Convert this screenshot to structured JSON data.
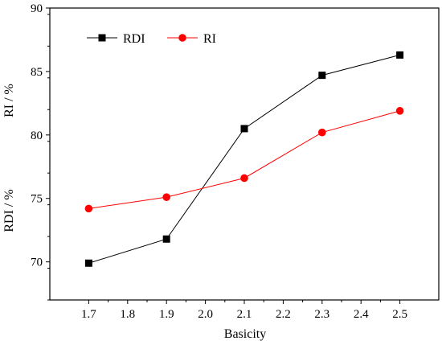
{
  "chart_data": {
    "type": "line",
    "title": "",
    "xlabel": "Basicity",
    "ylabel_upper": "RI / %",
    "ylabel_lower": "RDI / %",
    "x": [
      1.7,
      1.9,
      2.1,
      2.3,
      2.5
    ],
    "xlim": [
      1.6,
      2.6
    ],
    "xticks": [
      "1.7",
      "1.8",
      "1.9",
      "2.0",
      "2.1",
      "2.2",
      "2.3",
      "2.4",
      "2.5"
    ],
    "xtick_values": [
      1.7,
      1.8,
      1.9,
      2.0,
      2.1,
      2.2,
      2.3,
      2.4,
      2.5
    ],
    "ylim": [
      67,
      90
    ],
    "yticks": [
      "70",
      "75",
      "80",
      "85",
      "90"
    ],
    "ytick_values": [
      70,
      75,
      80,
      85,
      90
    ],
    "grid": false,
    "legend_position": "top-left",
    "series": [
      {
        "name": "RDI",
        "color": "#000000",
        "marker": "square",
        "values": [
          69.9,
          71.8,
          80.5,
          84.7,
          86.3
        ]
      },
      {
        "name": "RI",
        "color": "#ff0000",
        "marker": "circle",
        "values": [
          74.2,
          75.1,
          76.6,
          80.2,
          81.9
        ]
      }
    ]
  }
}
